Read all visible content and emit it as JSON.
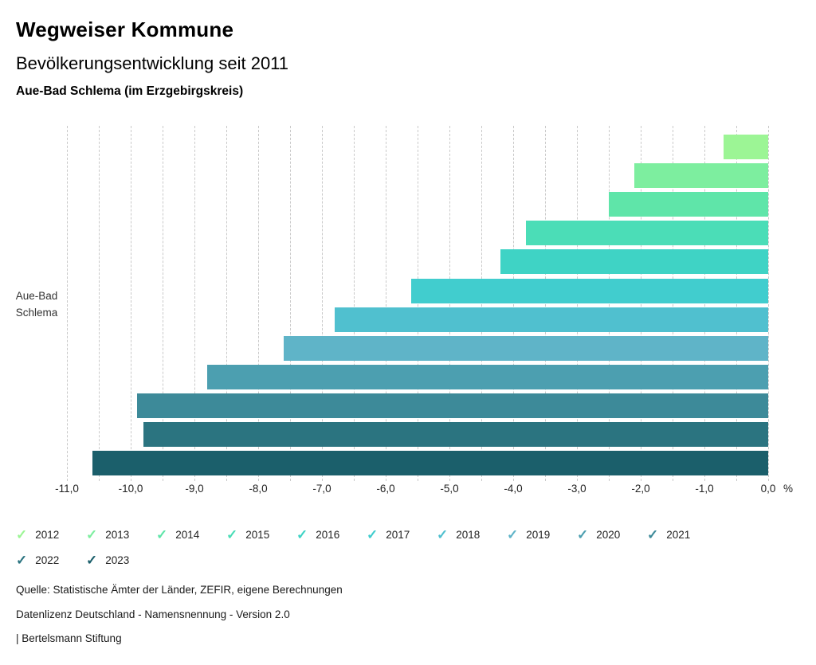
{
  "header": {
    "title": "Wegweiser Kommune",
    "subtitle": "Bevölkerungsentwicklung seit 2011",
    "region": "Aue-Bad Schlema (im Erzgebirgskreis)"
  },
  "chart_data": {
    "type": "bar",
    "orientation": "horizontal",
    "title": "Bevölkerungsentwicklung seit 2011",
    "category": "Aue-Bad Schlema",
    "category_lines": [
      "Aue-Bad",
      "Schlema"
    ],
    "unit": "%",
    "xlabel": "%",
    "xlim": [
      -11.0,
      0.0
    ],
    "gridline_step": 0.5,
    "grid": "dashed-vertical",
    "legend_position": "bottom",
    "legend_icon": "✓",
    "x_ticks": [
      {
        "value": -11,
        "label": "-11,0"
      },
      {
        "value": -10,
        "label": "-10,0"
      },
      {
        "value": -9,
        "label": "-9,0"
      },
      {
        "value": -8,
        "label": "-8,0"
      },
      {
        "value": -7,
        "label": "-7,0"
      },
      {
        "value": -6,
        "label": "-6,0"
      },
      {
        "value": -5,
        "label": "-5,0"
      },
      {
        "value": -4,
        "label": "-4,0"
      },
      {
        "value": -3,
        "label": "-3,0"
      },
      {
        "value": -2,
        "label": "-2,0"
      },
      {
        "value": -1,
        "label": "-1,0"
      },
      {
        "value": 0,
        "label": "0,0"
      }
    ],
    "series": [
      {
        "year": "2012",
        "value": -0.7,
        "color": "#9CF595"
      },
      {
        "year": "2013",
        "value": -2.1,
        "color": "#7DEE9F"
      },
      {
        "year": "2014",
        "value": -2.5,
        "color": "#5FE5A9"
      },
      {
        "year": "2015",
        "value": -3.8,
        "color": "#4BDDB7"
      },
      {
        "year": "2016",
        "value": -4.2,
        "color": "#3FD3C5"
      },
      {
        "year": "2017",
        "value": -5.6,
        "color": "#41CDCE"
      },
      {
        "year": "2018",
        "value": -6.8,
        "color": "#50C0CF"
      },
      {
        "year": "2019",
        "value": -7.6,
        "color": "#5FB4C8"
      },
      {
        "year": "2020",
        "value": -8.8,
        "color": "#4C9FB0"
      },
      {
        "year": "2021",
        "value": -9.9,
        "color": "#3D8A99"
      },
      {
        "year": "2022",
        "value": -9.8,
        "color": "#2B7480"
      },
      {
        "year": "2023",
        "value": -10.6,
        "color": "#1B5F6B"
      }
    ]
  },
  "footer": {
    "source": "Quelle: Statistische Ämter der Länder, ZEFIR, eigene Berechnungen",
    "license": "Datenlizenz Deutschland - Namensnennung - Version 2.0",
    "attribution": "| Bertelsmann Stiftung"
  }
}
